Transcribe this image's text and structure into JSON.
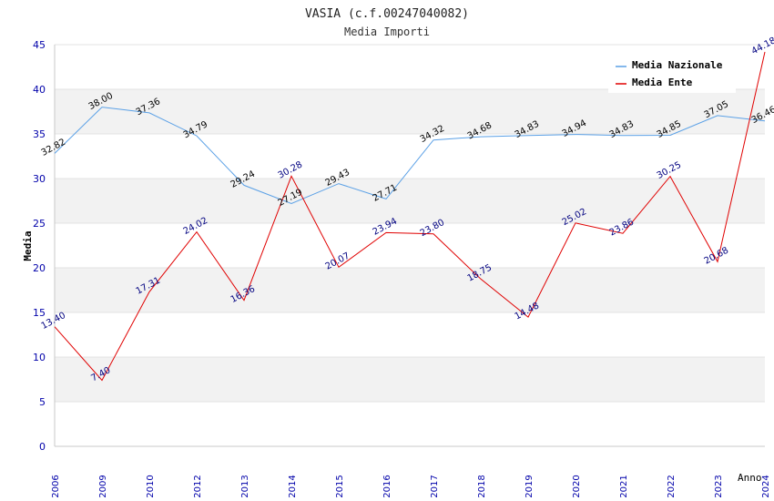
{
  "chart_data": {
    "type": "line",
    "title": "VASIA (c.f.00247040082)",
    "subtitle": "Media Importi",
    "xlabel": "Anno",
    "ylabel": "Media",
    "ylim": [
      0,
      45
    ],
    "yticks": [
      0,
      5,
      10,
      15,
      20,
      25,
      30,
      35,
      40,
      45
    ],
    "categories": [
      "2006",
      "2009",
      "2010",
      "2012",
      "2013",
      "2014",
      "2015",
      "2016",
      "2017",
      "2018",
      "2019",
      "2020",
      "2021",
      "2022",
      "2023",
      "2024"
    ],
    "series": [
      {
        "name": "Media Nazionale",
        "color": "#5aa0e6",
        "label_color": "#000000",
        "values": [
          32.82,
          38.0,
          37.36,
          34.79,
          29.24,
          27.19,
          29.43,
          27.71,
          34.32,
          34.68,
          34.83,
          34.94,
          34.83,
          34.85,
          37.05,
          36.46
        ],
        "labels": [
          "32.82",
          "38.00",
          "37.36",
          "34.79",
          "29.24",
          "27.19",
          "29.43",
          "27.71",
          "34.32",
          "34.68",
          "34.83",
          "34.94",
          "34.83",
          "34.85",
          "37.05",
          "36.46"
        ]
      },
      {
        "name": "Media Ente",
        "color": "#e00000",
        "label_color": "#000080",
        "values": [
          13.4,
          7.4,
          17.31,
          24.02,
          16.36,
          30.28,
          20.07,
          23.94,
          23.8,
          18.75,
          14.48,
          25.02,
          23.86,
          30.25,
          20.68,
          44.18
        ],
        "labels": [
          "13.40",
          "7.40",
          "17.31",
          "24.02",
          "16.36",
          "30.28",
          "20.07",
          "23.94",
          "23.80",
          "18.75",
          "14.48",
          "25.02",
          "23.86",
          "30.25",
          "20.68",
          "44.18"
        ]
      }
    ],
    "legend_position": "top-right",
    "grid": true,
    "band_color": "#f2f2f2"
  }
}
